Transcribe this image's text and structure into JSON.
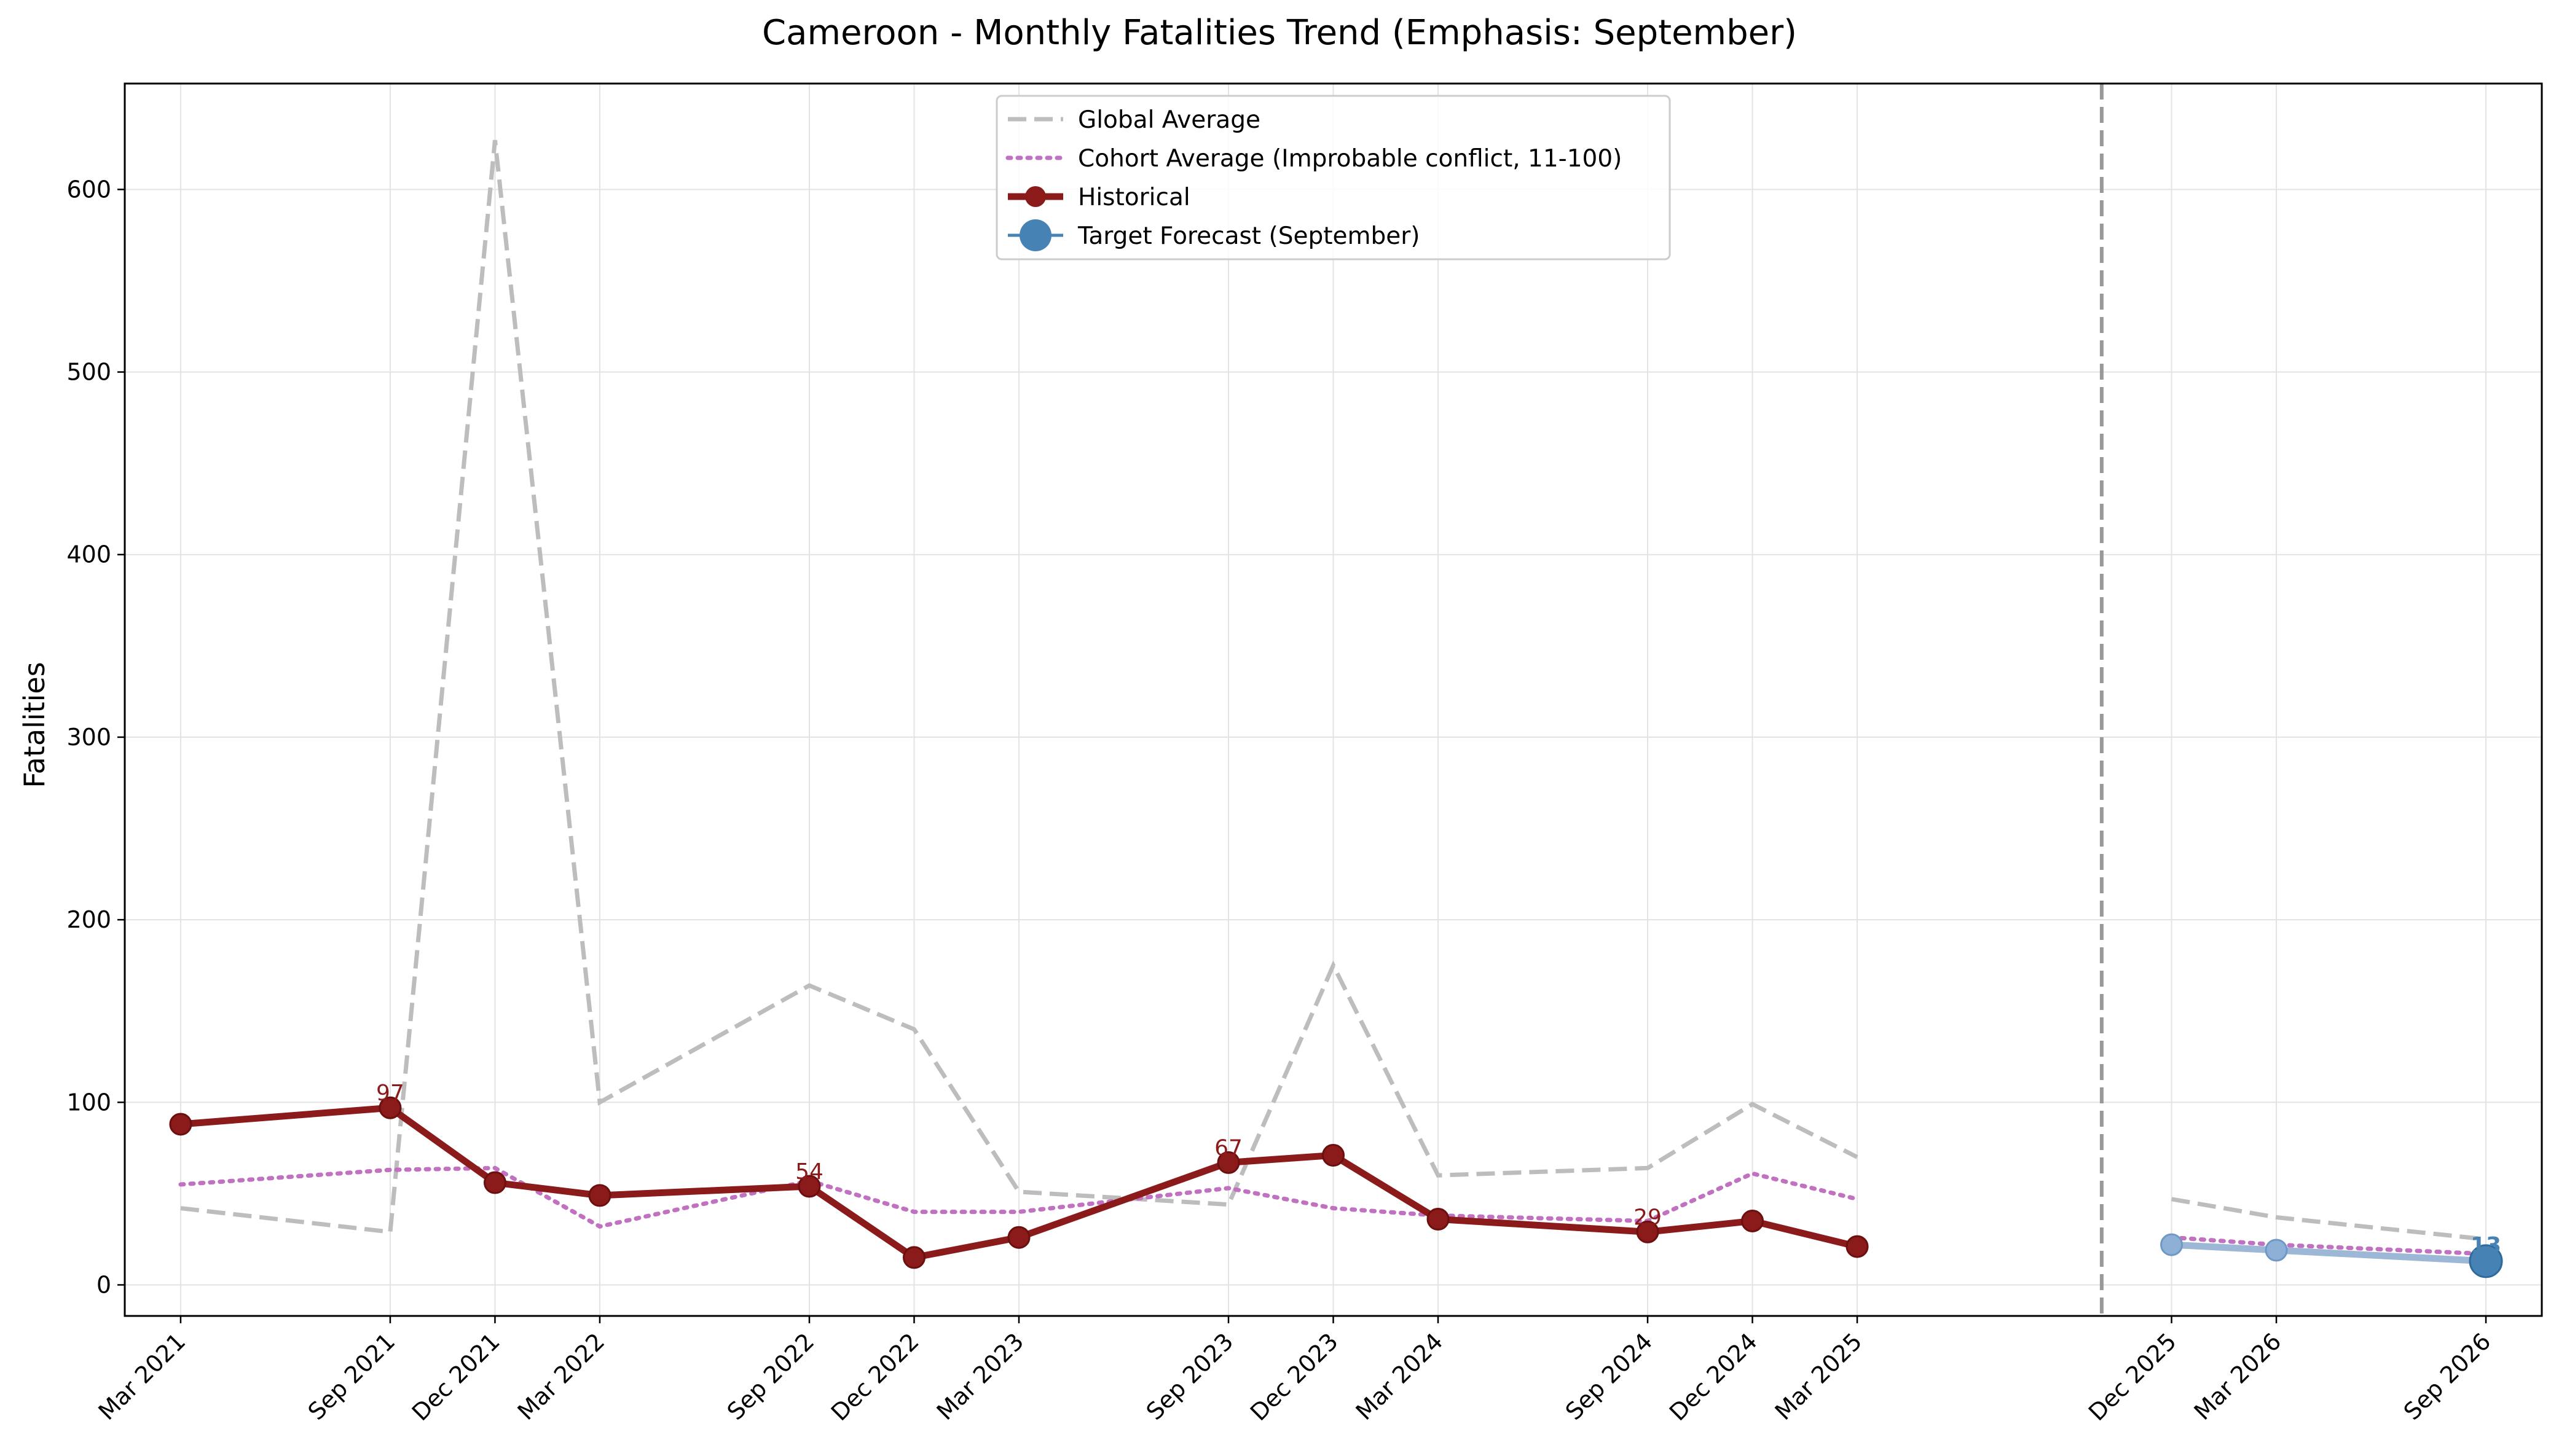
{
  "chart_data": {
    "type": "line",
    "title": "Cameroon - Monthly Fatalities Trend (Emphasis: September)",
    "xlabel": "",
    "ylabel": "Fatalities",
    "ylim": [
      -17,
      658
    ],
    "yticks": [
      0,
      100,
      200,
      300,
      400,
      500,
      600
    ],
    "grid": true,
    "legend_position": "top-center",
    "x_tick_labels": [
      "Mar 2021",
      "Sep 2021",
      "Dec 2021",
      "Mar 2022",
      "Sep 2022",
      "Dec 2022",
      "Mar 2023",
      "Sep 2023",
      "Dec 2023",
      "Mar 2024",
      "Sep 2024",
      "Dec 2024",
      "Mar 2025",
      "Dec 2025",
      "Mar 2026",
      "Sep 2026"
    ],
    "divider_x": "Oct 2025",
    "series": [
      {
        "name": "Global Average",
        "style": "dashed",
        "color": "#bdbdbd",
        "x": [
          "Mar 2021",
          "Sep 2021",
          "Dec 2021",
          "Mar 2022",
          "Sep 2022",
          "Dec 2022",
          "Mar 2023",
          "Sep 2023",
          "Dec 2023",
          "Mar 2024",
          "Sep 2024",
          "Dec 2024",
          "Mar 2025"
        ],
        "values": [
          42,
          29,
          627,
          100,
          164,
          140,
          51,
          44,
          175,
          60,
          64,
          99,
          70
        ]
      },
      {
        "name": "Cohort Average (Improbable conflict, 11-100)",
        "style": "dotted",
        "color": "#c071c0",
        "x": [
          "Mar 2021",
          "Sep 2021",
          "Dec 2021",
          "Mar 2022",
          "Sep 2022",
          "Dec 2022",
          "Mar 2023",
          "Sep 2023",
          "Dec 2023",
          "Mar 2024",
          "Sep 2024",
          "Dec 2024",
          "Mar 2025"
        ],
        "values": [
          55,
          63,
          64,
          32,
          57,
          40,
          40,
          53,
          42,
          38,
          35,
          61,
          47
        ]
      },
      {
        "name": "Historical",
        "style": "solid-marker",
        "color": "#8b1a1a",
        "x": [
          "Mar 2021",
          "Sep 2021",
          "Dec 2021",
          "Mar 2022",
          "Sep 2022",
          "Dec 2022",
          "Mar 2023",
          "Sep 2023",
          "Dec 2023",
          "Mar 2024",
          "Sep 2024",
          "Dec 2024",
          "Mar 2025"
        ],
        "values": [
          88,
          97,
          56,
          49,
          54,
          15,
          26,
          67,
          71,
          36,
          29,
          35,
          21
        ]
      },
      {
        "name": "Target Forecast (September)",
        "style": "solid-marker",
        "color": "#4682b4",
        "x": [
          "Dec 2025",
          "Mar 2026",
          "Sep 2026"
        ],
        "values": [
          22,
          19,
          13
        ]
      }
    ],
    "forecast_global": {
      "style": "dashed",
      "color": "#bdbdbd",
      "x": [
        "Dec 2025",
        "Mar 2026",
        "Sep 2026"
      ],
      "values": [
        47,
        37,
        25
      ]
    },
    "forecast_cohort": {
      "style": "dotted",
      "color": "#c071c0",
      "x": [
        "Dec 2025",
        "Mar 2026",
        "Sep 2026"
      ],
      "values": [
        26,
        22,
        17
      ]
    },
    "annotations": [
      {
        "x": "Sep 2021",
        "value": 97,
        "text": "97",
        "color": "#8b1a1a"
      },
      {
        "x": "Sep 2022",
        "value": 54,
        "text": "54",
        "color": "#8b1a1a"
      },
      {
        "x": "Sep 2023",
        "value": 67,
        "text": "67",
        "color": "#8b1a1a"
      },
      {
        "x": "Sep 2024",
        "value": 29,
        "text": "29",
        "color": "#8b1a1a"
      },
      {
        "x": "Sep 2026",
        "value": 13,
        "text": "13",
        "color": "#4682b4"
      }
    ]
  }
}
